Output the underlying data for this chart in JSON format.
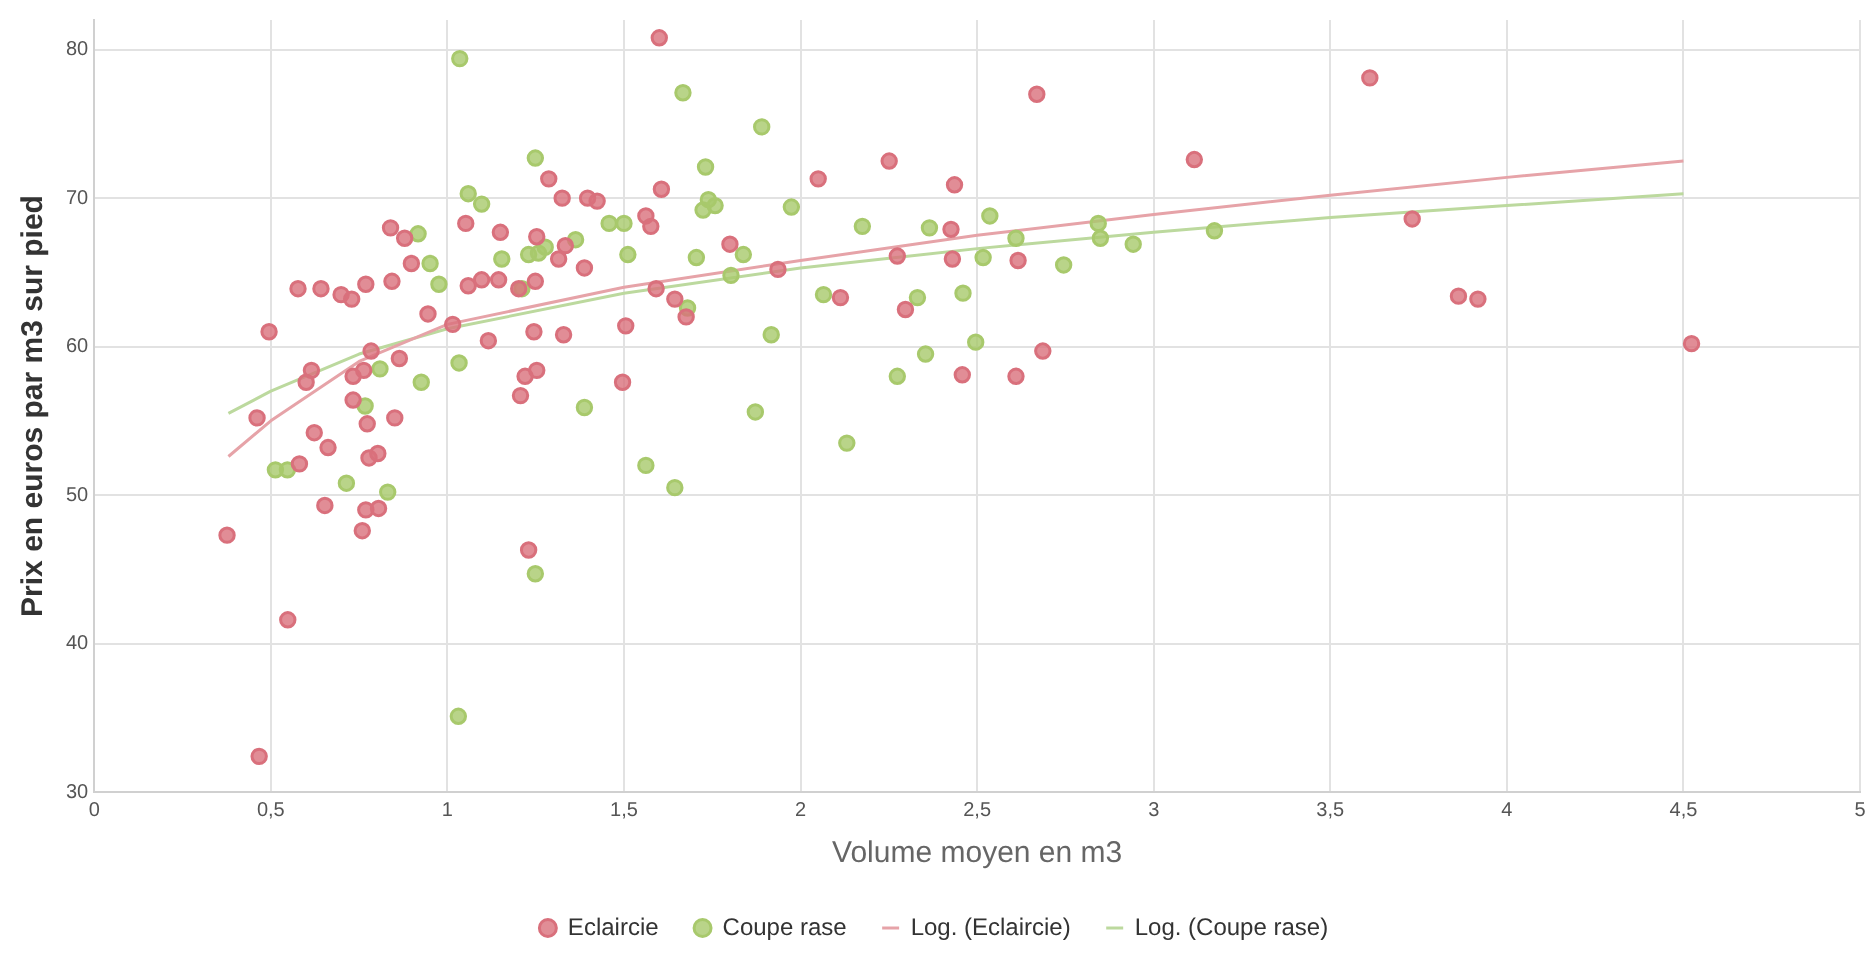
{
  "chart_data": {
    "type": "scatter",
    "xlabel": "Volume moyen en m3",
    "ylabel": "Prix en euros par m3 sur pied",
    "xlim": [
      0,
      5
    ],
    "xticks": [
      0,
      {
        "value": 0.5,
        "label": "0,5"
      },
      1,
      {
        "value": 1.5,
        "label": "1,5"
      },
      2,
      {
        "value": 2.5,
        "label": "2,5"
      },
      3,
      {
        "value": 3.5,
        "label": "3,5"
      },
      4,
      {
        "value": 4.5,
        "label": "4,5"
      },
      5
    ],
    "ylim": [
      30,
      82
    ],
    "yticks": [
      30,
      40,
      50,
      60,
      70,
      80
    ],
    "grid": true,
    "legend": "bottom",
    "marker": "circle",
    "series": [
      {
        "name": "Eclaircie",
        "color": "#d9707c",
        "x": [
          0.376,
          0.467,
          0.461,
          0.495,
          0.548,
          0.577,
          0.581,
          0.6,
          0.615,
          0.623,
          0.642,
          0.653,
          0.662,
          0.699,
          0.729,
          0.733,
          0.733,
          0.763,
          0.769,
          0.773,
          0.784,
          0.759,
          0.769,
          0.805,
          0.778,
          0.803,
          0.839,
          0.843,
          0.851,
          0.864,
          0.879,
          0.898,
          0.945,
          1.015,
          1.052,
          1.059,
          1.097,
          1.116,
          1.145,
          1.15,
          1.202,
          1.207,
          1.22,
          1.23,
          1.245,
          1.249,
          1.253,
          1.253,
          1.287,
          1.315,
          1.325,
          1.334,
          1.329,
          1.388,
          1.397,
          1.424,
          1.496,
          1.505,
          1.6,
          1.562,
          1.576,
          1.606,
          1.591,
          1.644,
          1.676,
          1.8,
          1.936,
          2.05,
          2.113,
          2.251,
          2.274,
          2.297,
          2.43,
          2.436,
          2.426,
          2.458,
          2.61,
          2.616,
          2.669,
          2.686,
          3.115,
          3.612,
          3.732,
          3.863,
          3.918,
          4.523
        ],
        "values": [
          47.3,
          32.4,
          55.2,
          61.0,
          41.6,
          63.9,
          52.1,
          57.6,
          58.4,
          54.2,
          63.9,
          49.3,
          53.2,
          63.5,
          63.2,
          58.0,
          56.4,
          58.4,
          64.2,
          54.8,
          59.7,
          47.6,
          49.0,
          49.1,
          52.5,
          52.8,
          68.0,
          64.4,
          55.2,
          59.2,
          67.3,
          65.6,
          62.2,
          61.5,
          68.3,
          64.1,
          64.5,
          60.4,
          64.5,
          67.7,
          63.9,
          56.7,
          58.0,
          46.3,
          61.0,
          64.4,
          58.4,
          67.4,
          71.3,
          65.9,
          70.0,
          66.8,
          60.8,
          65.3,
          70.0,
          69.8,
          57.6,
          61.4,
          80.8,
          68.8,
          68.1,
          70.6,
          63.9,
          63.2,
          62.0,
          66.9,
          65.2,
          71.3,
          63.3,
          72.5,
          66.1,
          62.5,
          65.9,
          70.9,
          67.9,
          58.1,
          58.0,
          65.8,
          77.0,
          59.7,
          72.6,
          78.1,
          68.6,
          63.4,
          63.2,
          60.2
        ]
      },
      {
        "name": "Coupe rase",
        "color": "#a8c96c",
        "x": [
          1.035,
          1.031,
          0.513,
          0.547,
          0.714,
          0.767,
          0.809,
          0.831,
          0.917,
          0.926,
          0.951,
          0.976,
          1.033,
          1.059,
          1.097,
          1.154,
          1.211,
          1.23,
          1.249,
          1.258,
          1.277,
          1.363,
          1.388,
          1.249,
          1.458,
          1.5,
          1.667,
          1.511,
          1.562,
          1.644,
          1.705,
          1.731,
          1.739,
          1.724,
          1.758,
          1.68,
          1.838,
          1.803,
          1.872,
          1.89,
          1.917,
          1.974,
          2.065,
          2.131,
          2.175,
          2.274,
          2.331,
          2.354,
          2.365,
          2.46,
          2.496,
          2.517,
          2.536,
          2.61,
          2.745,
          2.843,
          2.849,
          2.942,
          3.172
        ],
        "values": [
          79.4,
          35.1,
          51.7,
          51.7,
          50.8,
          56.0,
          58.5,
          50.2,
          67.6,
          57.6,
          65.6,
          64.2,
          58.9,
          70.3,
          69.6,
          65.9,
          63.9,
          66.2,
          72.7,
          66.3,
          66.7,
          67.2,
          55.9,
          44.7,
          68.3,
          68.3,
          77.1,
          66.2,
          52.0,
          50.5,
          66.0,
          72.1,
          69.9,
          69.2,
          69.5,
          62.6,
          66.2,
          64.8,
          55.6,
          74.8,
          60.8,
          69.4,
          63.5,
          53.5,
          68.1,
          58.0,
          63.3,
          59.5,
          68.0,
          63.6,
          60.3,
          66.0,
          68.8,
          67.3,
          65.5,
          68.3,
          67.3,
          66.9,
          67.8
        ]
      },
      {
        "name": "Log. (Eclaircie)",
        "type": "line",
        "marker": "none",
        "color": "#e6a3a8",
        "line_style": "solid",
        "x": [
          0.38,
          0.5,
          0.75,
          1,
          1.5,
          2,
          2.5,
          3,
          3.5,
          4,
          4.5
        ],
        "values": [
          52.6,
          55.0,
          59.0,
          61.5,
          64.0,
          65.8,
          67.5,
          68.9,
          70.2,
          71.4,
          72.5
        ]
      },
      {
        "name": "Log. (Coupe rase)",
        "type": "line",
        "marker": "none",
        "color": "#bcd99e",
        "line_style": "solid",
        "x": [
          0.38,
          0.5,
          0.75,
          1,
          1.5,
          2,
          2.5,
          3,
          3.5,
          4,
          4.5
        ],
        "values": [
          55.5,
          57.0,
          59.5,
          61.2,
          63.6,
          65.3,
          66.6,
          67.7,
          68.7,
          69.5,
          70.3
        ]
      }
    ]
  }
}
